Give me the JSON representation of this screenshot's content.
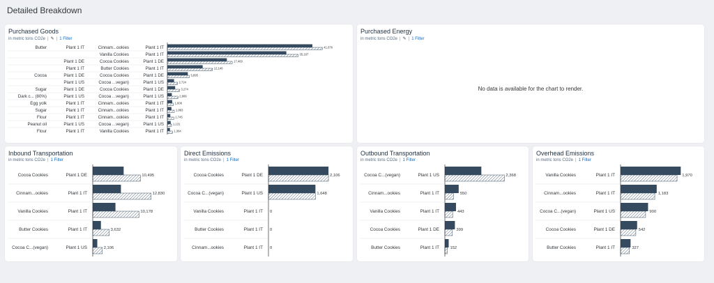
{
  "page_title": "Detailed Breakdown",
  "colors": {
    "dark": "#354a5f",
    "hatch": "#354a5f",
    "filter": "#0a6ed1",
    "grid": "#e4e6e9"
  },
  "purchased_energy": {
    "title": "Purchased Energy",
    "subtitle": "in metric tons CO2e",
    "filter": "1 Filter",
    "no_data": "No data is available for the chart to render."
  },
  "chart_data": [
    {
      "id": "purchased-goods",
      "type": "bar",
      "title": "Purchased Goods",
      "subtitle": "in metric tons CO2e",
      "filter": "1 Filter",
      "has_edit_icon": true,
      "dim_columns": 4,
      "max": 45000,
      "rows": [
        {
          "labels": [
            "Butter",
            "Plant 1 IT",
            "Cinnam...ookies",
            "Plant 1 IT"
          ],
          "actual": 39000,
          "compare": 41676,
          "label": "41,676"
        },
        {
          "labels": [
            "",
            "",
            "Vanilla Cookies",
            "Plant 1 IT"
          ],
          "actual": 32000,
          "compare": 35167,
          "label": "35,167"
        },
        {
          "labels": [
            "",
            "Plant 1 DE",
            "Cocoa Cookies",
            "Plant 1 DE"
          ],
          "actual": 16000,
          "compare": 17460,
          "label": "17,460"
        },
        {
          "labels": [
            "",
            "Plant 1 IT",
            "Butter Cookies",
            "Plant 1 IT"
          ],
          "actual": 9500,
          "compare": 12146,
          "label": "12,146"
        },
        {
          "labels": [
            "Cocoa",
            "Plant 1 DE",
            "Cocoa Cookies",
            "Plant 1 DE"
          ],
          "actual": 5500,
          "compare": 5895,
          "label": "5,895"
        },
        {
          "labels": [
            "",
            "Plant 1 US",
            "Cocoa ...vegan)",
            "Plant 1 US"
          ],
          "actual": 1800,
          "compare": 2724,
          "label": "2,724"
        },
        {
          "labels": [
            "Sugar",
            "Plant 1 DE",
            "Cocoa Cookies",
            "Plant 1 DE"
          ],
          "actual": 2100,
          "compare": 3274,
          "label": "3,274"
        },
        {
          "labels": [
            "Dark c... (80%)",
            "Plant 1 US",
            "Cocoa ...vegan)",
            "Plant 1 US"
          ],
          "actual": 1200,
          "compare": 2866,
          "label": "2,866"
        },
        {
          "labels": [
            "Egg yolk",
            "Plant 1 IT",
            "Cinnam...ookies",
            "Plant 1 IT"
          ],
          "actual": 1300,
          "compare": 1606,
          "label": "1,606"
        },
        {
          "labels": [
            "Sugar",
            "Plant 1 IT",
            "Cinnam...ookies",
            "Plant 1 IT"
          ],
          "actual": 1100,
          "compare": 1883,
          "label": "1,883"
        },
        {
          "labels": [
            "Flour",
            "Plant 1 IT",
            "Cinnam...ookies",
            "Plant 1 IT"
          ],
          "actual": 800,
          "compare": 1745,
          "label": "1,745"
        },
        {
          "labels": [
            "Peanut oil",
            "Plant 1 US",
            "Cocoa ...vegan)",
            "Plant 1 US"
          ],
          "actual": 900,
          "compare": 1131,
          "label": "1,131"
        },
        {
          "labels": [
            "Flour",
            "Plant 1 IT",
            "Vanilla Cookies",
            "Plant 1 IT"
          ],
          "actual": 700,
          "compare": 1364,
          "label": "1,364"
        }
      ]
    },
    {
      "id": "inbound-transportation",
      "type": "bar",
      "title": "Inbound Transportation",
      "subtitle": "in metric tons CO2e",
      "filter": "1 Filter",
      "has_edit_icon": false,
      "dim_columns": 2,
      "max": 13500,
      "rows": [
        {
          "labels": [
            "Cocoa Cookies",
            "Plant 1 DE"
          ],
          "actual": 6800,
          "compare": 10495,
          "label": "10,495"
        },
        {
          "labels": [
            "Cinnam...ookies",
            "Plant 1 IT"
          ],
          "actual": 6200,
          "compare": 12830,
          "label": "12,830"
        },
        {
          "labels": [
            "Vanilla Cookies",
            "Plant 1 IT"
          ],
          "actual": 5000,
          "compare": 10178,
          "label": "10,178"
        },
        {
          "labels": [
            "Butter Cookies",
            "Plant 1 IT"
          ],
          "actual": 1800,
          "compare": 3632,
          "label": "3,632"
        },
        {
          "labels": [
            "Cocoa C...(vegan)",
            "Plant 1 US"
          ],
          "actual": 1000,
          "compare": 2106,
          "label": "2,106"
        }
      ]
    },
    {
      "id": "direct-emissions",
      "type": "bar",
      "title": "Direct Emissions",
      "subtitle": "in metric tons CO2e",
      "filter": "1 Filter",
      "has_edit_icon": false,
      "dim_columns": 2,
      "max": 2250,
      "rows": [
        {
          "labels": [
            "Cocoa Cookies",
            "Plant 1 DE"
          ],
          "actual": 2106,
          "compare": 2106,
          "label": "2,106"
        },
        {
          "labels": [
            "Cocoa C...(vegan)",
            "Plant 1 US"
          ],
          "actual": 1648,
          "compare": 1648,
          "label": "1,648"
        },
        {
          "labels": [
            "Vanilla Cookies",
            "Plant 1 IT"
          ],
          "actual": 0,
          "compare": 0,
          "label": "0"
        },
        {
          "labels": [
            "Butter Cookies",
            "Plant 1 IT"
          ],
          "actual": 0,
          "compare": 0,
          "label": "0"
        },
        {
          "labels": [
            "Cinnam...ookies",
            "Plant 1 IT"
          ],
          "actual": 0,
          "compare": 0,
          "label": "0"
        }
      ]
    },
    {
      "id": "outbound-transportation",
      "type": "bar",
      "title": "Outbound Transportation",
      "subtitle": "in metric tons CO2e",
      "filter": "1 Filter",
      "has_edit_icon": false,
      "dim_columns": 2,
      "max": 2550,
      "rows": [
        {
          "labels": [
            "Cocoa C...(vegan)",
            "Plant 1 US"
          ],
          "actual": 1450,
          "compare": 2368,
          "label": "2,368"
        },
        {
          "labels": [
            "Cinnam...ookies",
            "Plant 1 IT"
          ],
          "actual": 550,
          "compare": 340,
          "label": "550"
        },
        {
          "labels": [
            "Vanilla Cookies",
            "Plant 1 IT"
          ],
          "actual": 443,
          "compare": 310,
          "label": "443"
        },
        {
          "labels": [
            "Cocoa Cookies",
            "Plant 1 DE"
          ],
          "actual": 399,
          "compare": 300,
          "label": "399"
        },
        {
          "labels": [
            "Butter Cookies",
            "Plant 1 IT"
          ],
          "actual": 152,
          "compare": 100,
          "label": "152"
        }
      ]
    },
    {
      "id": "overhead-emissions",
      "type": "bar",
      "title": "Overhead Emissions",
      "subtitle": "in metric tons CO2e",
      "filter": "1 Filter",
      "has_edit_icon": false,
      "dim_columns": 2,
      "max": 2100,
      "rows": [
        {
          "labels": [
            "Vanilla Cookies",
            "Plant 1 IT"
          ],
          "actual": 1970,
          "compare": 1850,
          "label": "1,970"
        },
        {
          "labels": [
            "Cinnam...ookies",
            "Plant 1 IT"
          ],
          "actual": 1183,
          "compare": 1120,
          "label": "1,183"
        },
        {
          "labels": [
            "Cocoa C...(vegan)",
            "Plant 1 US"
          ],
          "actual": 900,
          "compare": 820,
          "label": "900"
        },
        {
          "labels": [
            "Cocoa Cookies",
            "Plant 1 DE"
          ],
          "actual": 542,
          "compare": 500,
          "label": "542"
        },
        {
          "labels": [
            "Butter Cookies",
            "Plant 1 IT"
          ],
          "actual": 327,
          "compare": 290,
          "label": "327"
        }
      ]
    }
  ]
}
